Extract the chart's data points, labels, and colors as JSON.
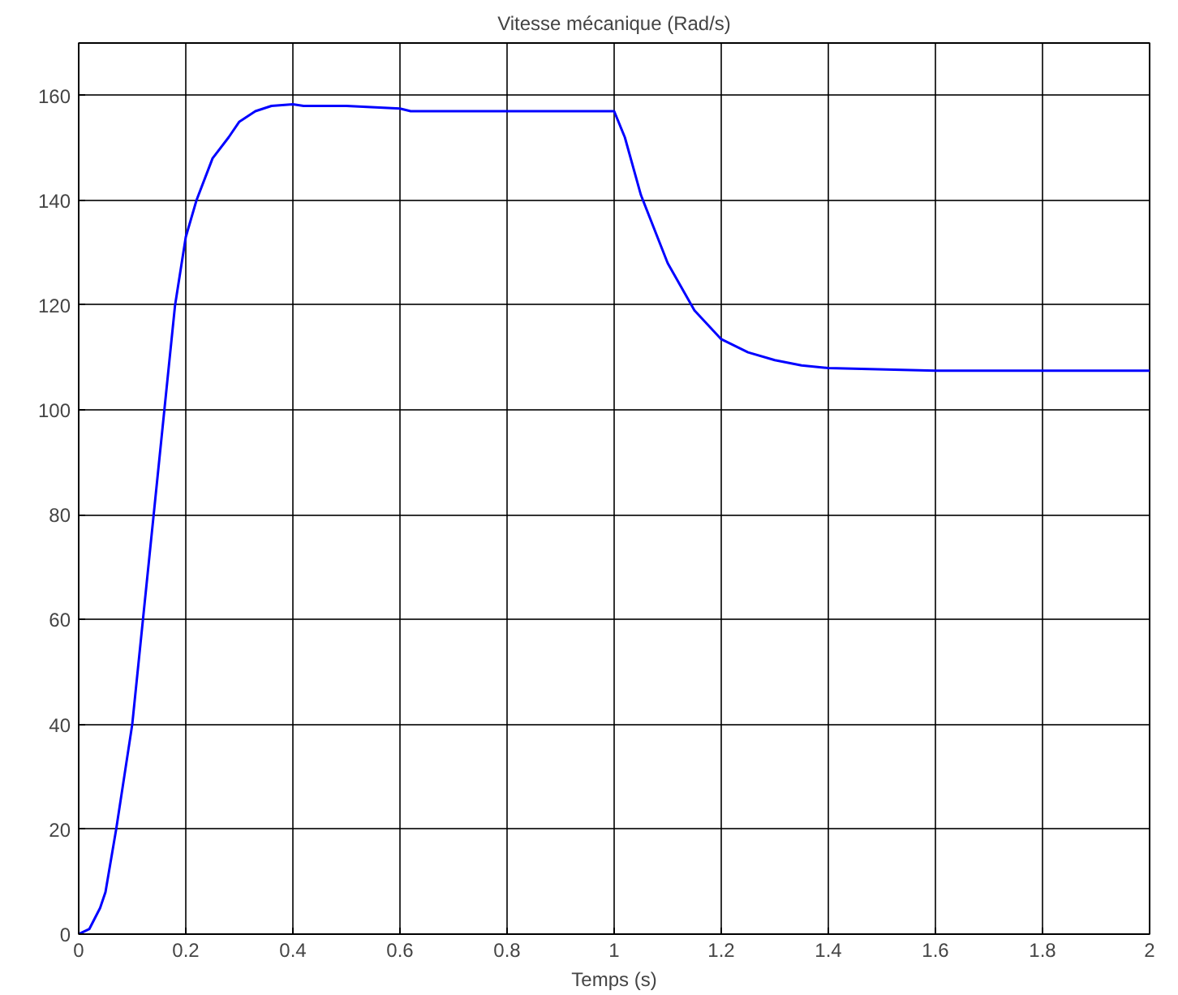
{
  "chart_data": {
    "type": "line",
    "title": "Vitesse mécanique (Rad/s)",
    "xlabel": "Temps (s)",
    "xlim": [
      0,
      2
    ],
    "ylim": [
      0,
      170
    ],
    "xticks": [
      0,
      0.2,
      0.4,
      0.6,
      0.8,
      1,
      1.2,
      1.4,
      1.6,
      1.8,
      2
    ],
    "yticks": [
      0,
      20,
      40,
      60,
      80,
      100,
      120,
      140,
      160
    ],
    "grid": true,
    "line_style": "solid",
    "series": [
      {
        "color": "#0000ff",
        "x": [
          0,
          0.02,
          0.04,
          0.05,
          0.07,
          0.1,
          0.12,
          0.14,
          0.16,
          0.18,
          0.2,
          0.22,
          0.25,
          0.28,
          0.3,
          0.33,
          0.36,
          0.4,
          0.42,
          0.5,
          0.6,
          0.62,
          0.8,
          1.0,
          1.02,
          1.05,
          1.1,
          1.15,
          1.2,
          1.25,
          1.3,
          1.35,
          1.4,
          1.6,
          1.8,
          2.0
        ],
        "values": [
          0,
          1,
          5,
          8,
          20,
          40,
          60,
          80,
          100,
          120,
          133,
          140,
          148,
          152,
          155,
          157,
          158,
          158.3,
          158,
          158,
          157.5,
          157,
          157,
          157,
          152,
          141,
          128,
          119,
          113.5,
          111,
          109.5,
          108.5,
          108,
          107.5,
          107.5,
          107.5
        ]
      }
    ]
  }
}
